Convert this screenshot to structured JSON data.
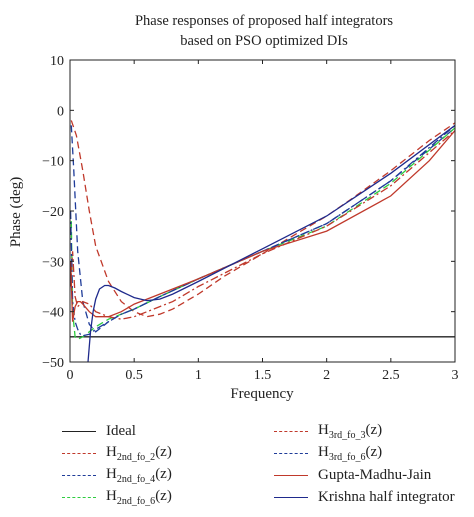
{
  "chart_data": {
    "type": "line",
    "title": [
      "Phase responses of proposed half integrators",
      "based on PSO optimized DIs"
    ],
    "xlabel": "Frequency",
    "ylabel": "Phase (deg)",
    "xlim": [
      0,
      3
    ],
    "ylim": [
      -50,
      10
    ],
    "xticks": [
      0,
      0.5,
      1,
      1.5,
      2,
      2.5,
      3
    ],
    "yticks": [
      -50,
      -40,
      -30,
      -20,
      -10,
      0,
      10
    ],
    "xtick_labels": [
      "0",
      "0.5",
      "1",
      "1.5",
      "2",
      "2.5",
      "3"
    ],
    "ytick_labels": [
      "−50",
      "−40",
      "−30",
      "−20",
      "−10",
      "0",
      "10"
    ],
    "grid": false,
    "legend_position": "bottom",
    "series": [
      {
        "name": "Ideal",
        "legend_main": "Ideal",
        "legend_sub": "",
        "legend_suffix": "",
        "color": "#222222",
        "dash": "solid",
        "x": [
          0,
          3
        ],
        "y": [
          -45,
          -45
        ]
      },
      {
        "name": "H2nd_fo_2(z)",
        "legend_main": "H",
        "legend_sub": "2nd_fo_2",
        "legend_suffix": "(z)",
        "color": "#c0392b",
        "dash": "dashed",
        "x": [
          0.01,
          0.05,
          0.1,
          0.15,
          0.2,
          0.3,
          0.4,
          0.5,
          0.6,
          0.7,
          0.8,
          1.0,
          1.2,
          1.5,
          1.8,
          2.0,
          2.2,
          2.5,
          2.8,
          3.0
        ],
        "y": [
          -2,
          -5,
          -12,
          -20,
          -27,
          -34,
          -38,
          -40,
          -41,
          -40.5,
          -39.5,
          -36.5,
          -33,
          -28.5,
          -24,
          -21,
          -17.5,
          -12,
          -6,
          -2.5
        ]
      },
      {
        "name": "H2nd_fo_4(z)",
        "legend_main": "H",
        "legend_sub": "2nd_fo_4",
        "legend_suffix": "(z)",
        "color": "#1f3c99",
        "dash": "dashed",
        "x": [
          0.01,
          0.03,
          0.06,
          0.1,
          0.15,
          0.2,
          0.25,
          0.3,
          0.4,
          0.5,
          0.7,
          1.0,
          1.5,
          2.0,
          2.5,
          3.0
        ],
        "y": [
          -3,
          -12,
          -28,
          -38,
          -42.5,
          -44,
          -43,
          -42,
          -40.5,
          -39.5,
          -37,
          -33.5,
          -28,
          -22.5,
          -14,
          -3.5
        ]
      },
      {
        "name": "H2nd_fo_6(z)",
        "legend_main": "H",
        "legend_sub": "2nd_fo_6",
        "legend_suffix": "(z)",
        "color": "#2ecc40",
        "dash": "dashed",
        "x": [
          0.01,
          0.02,
          0.04,
          0.06,
          0.1,
          0.15,
          0.2,
          0.3,
          0.5,
          0.7,
          1.0,
          1.5,
          2.0,
          2.5,
          3.0
        ],
        "y": [
          -22,
          -40,
          -45,
          -45.5,
          -45,
          -44,
          -43,
          -41.5,
          -39.5,
          -37,
          -33.5,
          -28,
          -23,
          -14.5,
          -3.5
        ]
      },
      {
        "name": "H3rd_fo_3(z)",
        "legend_main": "H",
        "legend_sub": "3rd_fo_3",
        "legend_suffix": "(z)",
        "color": "#c0392b",
        "dash": "dashdot",
        "x": [
          0.005,
          0.02,
          0.04,
          0.06,
          0.08,
          0.1,
          0.15,
          0.2,
          0.3,
          0.4,
          0.5,
          0.6,
          0.7,
          0.8,
          1.0,
          1.5,
          2.0,
          2.5,
          3.0
        ],
        "y": [
          -35,
          -28,
          -37,
          -39,
          -38.5,
          -38,
          -38.5,
          -40,
          -41,
          -41.5,
          -41,
          -40,
          -39,
          -38,
          -35,
          -28.5,
          -23,
          -15,
          -4
        ]
      },
      {
        "name": "H3rd_fo_6(z)",
        "legend_main": "H",
        "legend_sub": "3rd_fo_6",
        "legend_suffix": "(z)",
        "color": "#1f3c99",
        "dash": "dashdot",
        "x": [
          0.005,
          0.02,
          0.04,
          0.06,
          0.08,
          0.1,
          0.15,
          0.2,
          0.3,
          0.4,
          0.5,
          0.7,
          1.0,
          1.5,
          2.0,
          2.5,
          3.0
        ],
        "y": [
          -20,
          -38,
          -42,
          -43.5,
          -44.5,
          -44.8,
          -44.5,
          -43.5,
          -42,
          -40.5,
          -39.5,
          -37,
          -33.5,
          -28,
          -22.5,
          -14,
          -3
        ]
      },
      {
        "name": "Gupta-Madhu-Jain",
        "legend_main": "Gupta-Madhu-Jain",
        "legend_sub": "",
        "legend_suffix": "",
        "color": "#c0392b",
        "dash": "solid",
        "x": [
          0.005,
          0.02,
          0.04,
          0.06,
          0.08,
          0.1,
          0.15,
          0.2,
          0.3,
          0.4,
          0.5,
          0.6,
          0.8,
          1.0,
          1.5,
          2.0,
          2.5,
          2.8,
          3.0
        ],
        "y": [
          -30,
          -42,
          -39,
          -38,
          -38,
          -38.5,
          -40,
          -41,
          -41,
          -40,
          -38.5,
          -37.5,
          -35.5,
          -33.5,
          -28,
          -24,
          -17,
          -10,
          -4
        ]
      },
      {
        "name": "Krishna half integrator",
        "legend_main": "Krishna half integrator",
        "legend_sub": "",
        "legend_suffix": "",
        "color": "#1f2a8c",
        "dash": "solid",
        "x": [
          0.14,
          0.16,
          0.18,
          0.2,
          0.23,
          0.27,
          0.3,
          0.35,
          0.4,
          0.5,
          0.6,
          0.7,
          0.8,
          1.0,
          1.5,
          2.0,
          2.5,
          3.0
        ],
        "y": [
          -50,
          -44,
          -40,
          -37.5,
          -35.5,
          -34.8,
          -34.8,
          -35.3,
          -36,
          -37.2,
          -37.8,
          -37.5,
          -36.5,
          -34,
          -27.5,
          -21,
          -12.5,
          -3
        ]
      }
    ]
  }
}
